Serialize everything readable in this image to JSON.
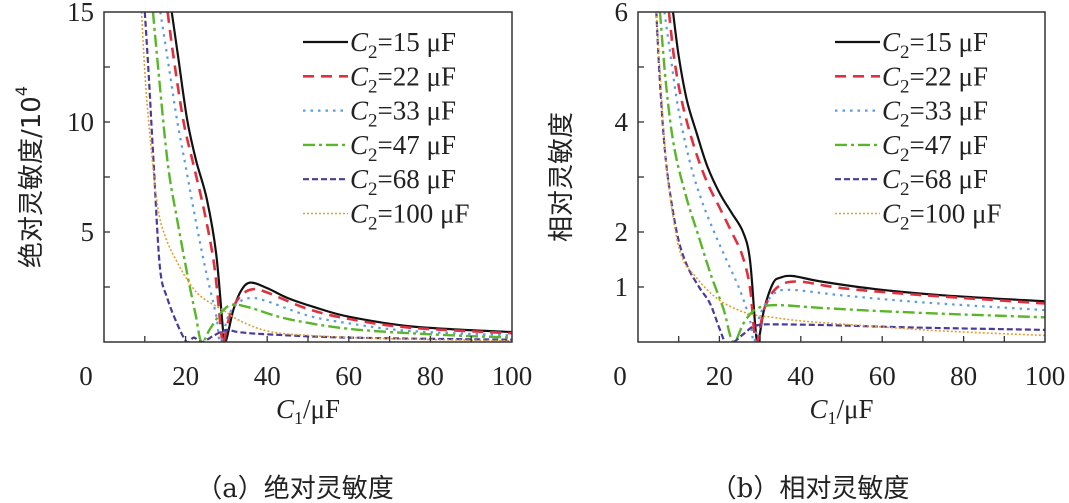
{
  "chart_data": [
    {
      "type": "line",
      "panel": "a",
      "caption": "（a）绝对灵敏度",
      "xlabel": {
        "var": "C",
        "sub": "1",
        "rest": "/μF"
      },
      "ylabel": "绝对灵敏度/10",
      "ylabel_exp": "4",
      "xlim": [
        0,
        100
      ],
      "ylim": [
        0,
        15
      ],
      "xticks": [
        0,
        20,
        40,
        60,
        80,
        100
      ],
      "xticks_minor": [
        10,
        30,
        50,
        70,
        90
      ],
      "yticks": [
        5,
        10,
        15
      ],
      "yticks_minor": [
        2.5,
        7.5,
        12.5
      ],
      "legend_position": "top-right",
      "series": [
        {
          "name": "C2=15 μF",
          "label": {
            "var": "C",
            "sub": "2",
            "rest": "=15 μF"
          },
          "color": "#111111",
          "style": "solid",
          "points": [
            [
              16.6,
              15
            ],
            [
              18,
              13.2
            ],
            [
              20.3,
              10.2
            ],
            [
              22.5,
              8.3
            ],
            [
              25.2,
              6.5
            ],
            [
              27.5,
              4
            ],
            [
              29.2,
              0.5
            ],
            [
              29.8,
              0
            ],
            [
              31.7,
              1.45
            ],
            [
              33.5,
              2.3
            ],
            [
              35.8,
              2.7
            ],
            [
              40,
              2.45
            ],
            [
              45,
              2.0
            ],
            [
              51.3,
              1.6
            ],
            [
              60,
              1.15
            ],
            [
              75.8,
              0.7
            ],
            [
              100,
              0.45
            ]
          ]
        },
        {
          "name": "C2=22 μF",
          "label": {
            "var": "C",
            "sub": "2",
            "rest": "=22 μF"
          },
          "color": "#e0303f",
          "style": "dashed",
          "points": [
            [
              15.6,
              15
            ],
            [
              17,
              13
            ],
            [
              19.5,
              10
            ],
            [
              22,
              8
            ],
            [
              24.5,
              6
            ],
            [
              27,
              3.5
            ],
            [
              28.8,
              0.3
            ],
            [
              29.3,
              0
            ],
            [
              31,
              1.3
            ],
            [
              33.5,
              2.1
            ],
            [
              36.5,
              2.4
            ],
            [
              40,
              2.25
            ],
            [
              50,
              1.5
            ],
            [
              60,
              1.05
            ],
            [
              75,
              0.65
            ],
            [
              100,
              0.4
            ]
          ]
        },
        {
          "name": "C2=33 μF",
          "label": {
            "var": "C",
            "sub": "2",
            "rest": "=33 μF"
          },
          "color": "#5b9be0",
          "style": "dotted",
          "points": [
            [
              13.8,
              15
            ],
            [
              15.5,
              13
            ],
            [
              17.8,
              10.2
            ],
            [
              20,
              8
            ],
            [
              22.5,
              5.5
            ],
            [
              25,
              3.2
            ],
            [
              27.5,
              1.2
            ],
            [
              28.5,
              0
            ],
            [
              30.5,
              1.2
            ],
            [
              33,
              1.8
            ],
            [
              36,
              2.0
            ],
            [
              40,
              1.85
            ],
            [
              50,
              1.2
            ],
            [
              60,
              0.85
            ],
            [
              75,
              0.5
            ],
            [
              100,
              0.3
            ]
          ]
        },
        {
          "name": "C2=47 μF",
          "label": {
            "var": "C",
            "sub": "2",
            "rest": "=47 μF"
          },
          "color": "#5ab52a",
          "style": "dash-dot",
          "points": [
            [
              12,
              15
            ],
            [
              13.5,
              12
            ],
            [
              15.7,
              8
            ],
            [
              18,
              5.5
            ],
            [
              20.5,
              3
            ],
            [
              22.5,
              1.2
            ],
            [
              23.9,
              0
            ],
            [
              26,
              0.6
            ],
            [
              29,
              1.4
            ],
            [
              31.6,
              1.7
            ],
            [
              36,
              1.55
            ],
            [
              45,
              1.05
            ],
            [
              60,
              0.6
            ],
            [
              80,
              0.35
            ],
            [
              100,
              0.2
            ]
          ]
        },
        {
          "name": "C2=68 μF",
          "label": {
            "var": "C",
            "sub": "2",
            "rest": "=68 μF"
          },
          "color": "#4a3a9a",
          "style": "short-dash",
          "points": [
            [
              10,
              15
            ],
            [
              11,
              12
            ],
            [
              12.2,
              8
            ],
            [
              13.7,
              3.4
            ],
            [
              15.5,
              2
            ],
            [
              18,
              0.8
            ],
            [
              20.3,
              0
            ],
            [
              22,
              0.2
            ],
            [
              24,
              0
            ],
            [
              27,
              0.3
            ],
            [
              30,
              0.55
            ],
            [
              33,
              0.45
            ],
            [
              40,
              0.35
            ],
            [
              60,
              0.2
            ],
            [
              100,
              0.1
            ]
          ]
        },
        {
          "name": "C2=100 μF",
          "label": {
            "var": "C",
            "sub": "2",
            "rest": "=100 μF"
          },
          "color": "#e0a030",
          "style": "fine-dot",
          "points": [
            [
              9.2,
              15
            ],
            [
              10.5,
              11
            ],
            [
              12.9,
              6.5
            ],
            [
              15,
              4.8
            ],
            [
              18.6,
              3.4
            ],
            [
              22,
              2.4
            ],
            [
              25,
              1.9
            ],
            [
              29.2,
              1.45
            ],
            [
              33,
              1.0
            ],
            [
              40,
              0.5
            ],
            [
              50,
              0.3
            ],
            [
              70,
              0.15
            ],
            [
              100,
              0.05
            ]
          ]
        }
      ]
    },
    {
      "type": "line",
      "panel": "b",
      "caption": "（b）相对灵敏度",
      "xlabel": {
        "var": "C",
        "sub": "1",
        "rest": "/μF"
      },
      "ylabel": "相对灵敏度",
      "xlim": [
        0,
        100
      ],
      "ylim": [
        0,
        6
      ],
      "xticks": [
        0,
        20,
        40,
        60,
        80,
        100
      ],
      "xticks_minor": [
        10,
        30,
        50,
        70,
        90
      ],
      "yticks": [
        1,
        2,
        4,
        6
      ],
      "yticks_minor": [
        3,
        5
      ],
      "legend_position": "top-right",
      "series": [
        {
          "name": "C2=15 μF",
          "label": {
            "var": "C",
            "sub": "2",
            "rest": "=15 μF"
          },
          "color": "#111111",
          "style": "solid",
          "points": [
            [
              8.6,
              6
            ],
            [
              10,
              5.2
            ],
            [
              12,
              4.4
            ],
            [
              14.4,
              3.8
            ],
            [
              17,
              3.2
            ],
            [
              20.1,
              2.7
            ],
            [
              23,
              2.35
            ],
            [
              25.8,
              2.0
            ],
            [
              27.5,
              1.5
            ],
            [
              28.8,
              0.3
            ],
            [
              29.5,
              0
            ],
            [
              31,
              0.6
            ],
            [
              33.2,
              1.07
            ],
            [
              35,
              1.17
            ],
            [
              38,
              1.2
            ],
            [
              45,
              1.1
            ],
            [
              58.5,
              0.96
            ],
            [
              74.9,
              0.85
            ],
            [
              100,
              0.74
            ]
          ]
        },
        {
          "name": "C2=22 μF",
          "label": {
            "var": "C",
            "sub": "2",
            "rest": "=22 μF"
          },
          "color": "#e0303f",
          "style": "dashed",
          "points": [
            [
              7.6,
              6
            ],
            [
              9,
              5.1
            ],
            [
              11,
              4.3
            ],
            [
              14,
              3.5
            ],
            [
              17,
              2.9
            ],
            [
              20,
              2.45
            ],
            [
              23,
              2.0
            ],
            [
              25.5,
              1.6
            ],
            [
              27.5,
              1.0
            ],
            [
              29,
              0
            ],
            [
              31,
              0.6
            ],
            [
              34,
              0.98
            ],
            [
              39,
              1.1
            ],
            [
              50,
              0.98
            ],
            [
              65,
              0.88
            ],
            [
              80,
              0.8
            ],
            [
              100,
              0.7
            ]
          ]
        },
        {
          "name": "C2=33 μF",
          "label": {
            "var": "C",
            "sub": "2",
            "rest": "=33 μF"
          },
          "color": "#5b9be0",
          "style": "dotted",
          "points": [
            [
              6.5,
              6
            ],
            [
              8,
              5.2
            ],
            [
              10,
              4.2
            ],
            [
              13,
              3.2
            ],
            [
              16,
              2.5
            ],
            [
              19,
              1.95
            ],
            [
              22,
              1.45
            ],
            [
              25,
              0.95
            ],
            [
              27.5,
              0.4
            ],
            [
              28.5,
              0
            ],
            [
              30,
              0.5
            ],
            [
              33,
              0.85
            ],
            [
              37,
              0.95
            ],
            [
              50,
              0.85
            ],
            [
              70,
              0.72
            ],
            [
              100,
              0.58
            ]
          ]
        },
        {
          "name": "C2=47 μF",
          "label": {
            "var": "C",
            "sub": "2",
            "rest": "=47 μF"
          },
          "color": "#5ab52a",
          "style": "dash-dot",
          "points": [
            [
              5.4,
              6
            ],
            [
              7,
              4.6
            ],
            [
              9,
              3.5
            ],
            [
              12,
              2.6
            ],
            [
              15,
              1.9
            ],
            [
              18,
              1.2
            ],
            [
              21,
              0.6
            ],
            [
              23.4,
              0
            ],
            [
              26,
              0.35
            ],
            [
              29,
              0.6
            ],
            [
              34,
              0.67
            ],
            [
              45,
              0.62
            ],
            [
              60,
              0.56
            ],
            [
              80,
              0.5
            ],
            [
              100,
              0.45
            ]
          ]
        },
        {
          "name": "C2=68 μF",
          "label": {
            "var": "C",
            "sub": "2",
            "rest": "=68 μF"
          },
          "color": "#4a3a9a",
          "style": "short-dash",
          "points": [
            [
              4.5,
              6
            ],
            [
              5.5,
              4.6
            ],
            [
              7,
              3.2
            ],
            [
              9.5,
              2.0
            ],
            [
              12,
              1.4
            ],
            [
              15,
              1.0
            ],
            [
              17.7,
              0.7
            ],
            [
              20,
              0.25
            ],
            [
              21.5,
              0
            ],
            [
              23.5,
              0
            ],
            [
              26,
              0.15
            ],
            [
              29,
              0.3
            ],
            [
              35,
              0.32
            ],
            [
              50,
              0.3
            ],
            [
              70,
              0.26
            ],
            [
              100,
              0.22
            ]
          ]
        },
        {
          "name": "C2=100 μF",
          "label": {
            "var": "C",
            "sub": "2",
            "rest": "=100 μF"
          },
          "color": "#e0a030",
          "style": "fine-dot",
          "points": [
            [
              4.5,
              6
            ],
            [
              5.5,
              4.8
            ],
            [
              7,
              3.2
            ],
            [
              9,
              2.1
            ],
            [
              11,
              1.5
            ],
            [
              14,
              1.2
            ],
            [
              17,
              0.95
            ],
            [
              20,
              0.76
            ],
            [
              24,
              0.6
            ],
            [
              28,
              0.5
            ],
            [
              33,
              0.45
            ],
            [
              40.5,
              0.38
            ],
            [
              55,
              0.3
            ],
            [
              75,
              0.2
            ],
            [
              100,
              0.12
            ]
          ]
        }
      ]
    }
  ]
}
